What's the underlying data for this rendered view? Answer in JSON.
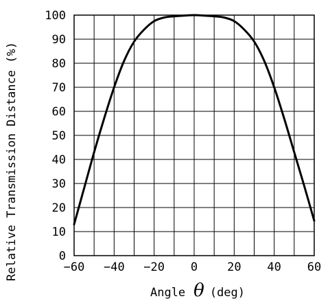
{
  "chart_data": {
    "type": "line",
    "xlabel_prefix": "Angle",
    "xlabel_symbol": "θ",
    "xlabel_suffix": "(deg)",
    "ylabel": "Relative Transmission Distance (%)",
    "xlim": [
      -60,
      60
    ],
    "ylim": [
      0,
      100
    ],
    "x_ticks": [
      -60,
      -40,
      -20,
      0,
      20,
      40,
      60
    ],
    "x_tick_labels": [
      "−60",
      "−40",
      "−20",
      "0",
      "20",
      "40",
      "60"
    ],
    "y_ticks": [
      0,
      10,
      20,
      30,
      40,
      50,
      60,
      70,
      80,
      90,
      100
    ],
    "y_tick_labels": [
      "0",
      "10",
      "20",
      "30",
      "40",
      "50",
      "60",
      "70",
      "80",
      "90",
      "100"
    ],
    "x_grid_step": 10,
    "grid": true,
    "series": [
      {
        "x": [
          -60,
          -55,
          -50,
          -45,
          -40,
          -35,
          -30,
          -25,
          -20,
          -15,
          -10,
          -5,
          0,
          5,
          10,
          15,
          20,
          25,
          30,
          35,
          40,
          45,
          50,
          55,
          60
        ],
        "y": [
          13,
          28,
          43,
          57,
          70,
          81,
          89,
          94,
          97.5,
          99,
          99.5,
          99.8,
          100,
          99.8,
          99.5,
          99,
          97.5,
          94,
          89,
          81,
          70,
          57,
          43,
          29,
          14.5
        ]
      }
    ],
    "colors": {
      "line": "#000000",
      "grid": "#000000",
      "background": "#ffffff"
    }
  }
}
